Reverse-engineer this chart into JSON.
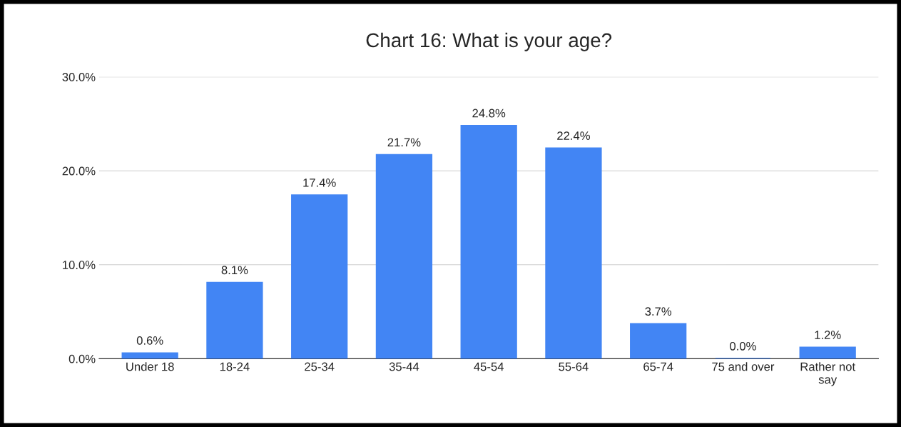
{
  "chart_data": {
    "type": "bar",
    "title": "Chart 16: What is your age?",
    "categories": [
      "Under 18",
      "18-24",
      "25-34",
      "35-44",
      "45-54",
      "55-64",
      "65-74",
      "75 and over",
      "Rather not\nsay"
    ],
    "values": [
      0.6,
      8.1,
      17.4,
      21.7,
      24.8,
      22.4,
      3.7,
      0.0,
      1.2
    ],
    "value_labels": [
      "0.6%",
      "8.1%",
      "17.4%",
      "21.7%",
      "24.8%",
      "22.4%",
      "3.7%",
      "0.0%",
      "1.2%"
    ],
    "color": "#4285f4",
    "ylim": [
      0,
      30
    ],
    "yticks": [
      {
        "value": 0,
        "label": "0.0%"
      },
      {
        "value": 10,
        "label": "10.0%"
      },
      {
        "value": 20,
        "label": "20.0%"
      },
      {
        "value": 30,
        "label": "30.0%"
      }
    ],
    "grid": "y",
    "legend": false
  }
}
